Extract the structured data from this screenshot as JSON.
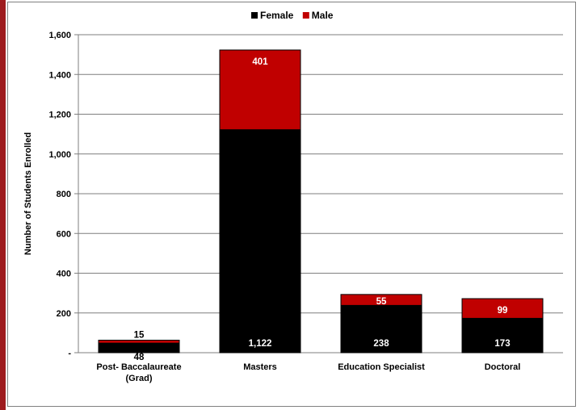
{
  "chart_data": {
    "type": "bar",
    "stacked": true,
    "categories": [
      [
        "Post- Baccalaureate",
        "(Grad)"
      ],
      [
        "Masters"
      ],
      [
        "Education Specialist"
      ],
      [
        "Doctoral"
      ]
    ],
    "series": [
      {
        "name": "Female",
        "color": "#000000",
        "values": [
          48,
          1122,
          238,
          173
        ],
        "labels": [
          "48",
          "1,122",
          "238",
          "173"
        ]
      },
      {
        "name": "Male",
        "color": "#c00000",
        "values": [
          15,
          401,
          55,
          99
        ],
        "labels": [
          "15",
          "401",
          "55",
          "99"
        ]
      }
    ],
    "ylabel": "Number of Students Enrolled",
    "ylim": [
      0,
      1600
    ],
    "yticks": [
      0,
      200,
      400,
      600,
      800,
      1000,
      1200,
      1400,
      1600
    ],
    "ytick_labels": [
      "-",
      "200",
      "400",
      "600",
      "800",
      "1,000",
      "1,200",
      "1,400",
      "1,600"
    ],
    "grid": true,
    "legend_position": "top"
  }
}
